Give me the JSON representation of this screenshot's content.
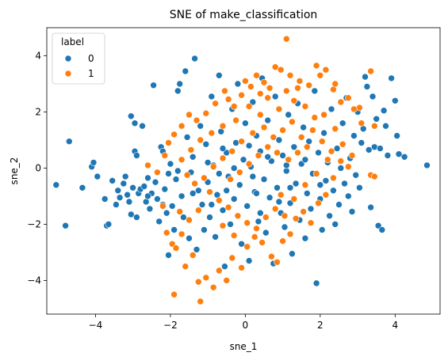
{
  "chart_data": {
    "type": "scatter",
    "title": "SNE of make_classification",
    "xlabel": "sne_1",
    "ylabel": "sne_2",
    "xlim": [
      -5.3,
      5.2
    ],
    "ylim": [
      -5.2,
      5.0
    ],
    "xticks": [
      -4,
      -2,
      0,
      2,
      4
    ],
    "yticks": [
      -4,
      -2,
      0,
      2,
      4
    ],
    "grid": false,
    "legend": {
      "title": "label",
      "placement": "top-left"
    },
    "series": [
      {
        "name": "0",
        "color": "#1f77b4",
        "points": [
          [
            -4.8,
            -2.05
          ],
          [
            -4.7,
            0.95
          ],
          [
            -5.05,
            -0.6
          ],
          [
            -4.35,
            -0.7
          ],
          [
            -4.1,
            0.05
          ],
          [
            -4.05,
            0.2
          ],
          [
            -3.95,
            -0.3
          ],
          [
            -3.75,
            -1.1
          ],
          [
            -3.7,
            -2.05
          ],
          [
            -3.65,
            -2.0
          ],
          [
            -3.55,
            -0.45
          ],
          [
            -3.45,
            -1.3
          ],
          [
            -3.4,
            -0.8
          ],
          [
            -3.35,
            -1.05
          ],
          [
            -3.25,
            -0.55
          ],
          [
            -3.2,
            -0.3
          ],
          [
            -3.15,
            -0.95
          ],
          [
            -3.1,
            -1.2
          ],
          [
            -3.05,
            1.85
          ],
          [
            -3.05,
            -1.65
          ],
          [
            -3.0,
            -0.7
          ],
          [
            -2.95,
            0.6
          ],
          [
            -2.95,
            1.6
          ],
          [
            -2.9,
            0.45
          ],
          [
            -2.9,
            -1.75
          ],
          [
            -2.85,
            -0.9
          ],
          [
            -2.8,
            -0.75
          ],
          [
            -2.75,
            1.5
          ],
          [
            -2.7,
            -0.65
          ],
          [
            -2.65,
            -1.2
          ],
          [
            -2.6,
            -0.35
          ],
          [
            -2.55,
            -1.45
          ],
          [
            -2.5,
            -0.9
          ],
          [
            -2.45,
            2.95
          ],
          [
            -2.4,
            -0.5
          ],
          [
            -2.35,
            -1.1
          ],
          [
            -2.3,
            -1.9
          ],
          [
            -2.25,
            0.75
          ],
          [
            -2.2,
            0.6
          ],
          [
            -2.15,
            -0.75
          ],
          [
            -2.1,
            -1.6
          ],
          [
            -2.05,
            -0.2
          ],
          [
            -2.05,
            -3.1
          ],
          [
            -2.0,
            0.15
          ],
          [
            -1.95,
            -1.35
          ],
          [
            -1.9,
            -2.2
          ],
          [
            -1.85,
            -0.4
          ],
          [
            -1.8,
            2.75
          ],
          [
            -1.75,
            3.0
          ],
          [
            -1.7,
            -1.0
          ],
          [
            -1.65,
            -1.75
          ],
          [
            -1.6,
            3.45
          ],
          [
            -1.55,
            1.1
          ],
          [
            -1.5,
            -2.5
          ],
          [
            -1.45,
            -0.15
          ],
          [
            -1.4,
            0.4
          ],
          [
            -1.35,
            3.9
          ],
          [
            -1.3,
            -2.9
          ],
          [
            -1.25,
            -0.8
          ],
          [
            -1.2,
            1.5
          ],
          [
            -1.15,
            -1.3
          ],
          [
            -1.1,
            -2.2
          ],
          [
            -1.05,
            0.85
          ],
          [
            -1.0,
            -0.5
          ],
          [
            -0.95,
            -1.75
          ],
          [
            -0.9,
            2.55
          ],
          [
            -0.85,
            0.1
          ],
          [
            -0.8,
            -2.45
          ],
          [
            -0.75,
            -0.95
          ],
          [
            -0.7,
            3.3
          ],
          [
            -0.65,
            1.3
          ],
          [
            -0.6,
            -1.5
          ],
          [
            -0.55,
            -3.5
          ],
          [
            -0.5,
            0.55
          ],
          [
            -0.45,
            -0.3
          ],
          [
            -0.4,
            -2.0
          ],
          [
            -0.35,
            2.1
          ],
          [
            -0.3,
            -1.1
          ],
          [
            -0.25,
            0.9
          ],
          [
            -0.2,
            3.0
          ],
          [
            -0.15,
            -0.6
          ],
          [
            -0.1,
            -2.7
          ],
          [
            -0.05,
            0.3
          ],
          [
            0.0,
            1.6
          ],
          [
            0.05,
            -1.35
          ],
          [
            0.1,
            -3.3
          ],
          [
            0.15,
            0.05
          ],
          [
            0.2,
            2.35
          ],
          [
            0.25,
            -0.85
          ],
          [
            0.3,
            1.15
          ],
          [
            0.35,
            -1.9
          ],
          [
            0.4,
            0.6
          ],
          [
            0.45,
            3.2
          ],
          [
            0.5,
            -0.4
          ],
          [
            0.55,
            -2.3
          ],
          [
            0.6,
            1.7
          ],
          [
            0.65,
            -1.05
          ],
          [
            0.7,
            0.25
          ],
          [
            0.75,
            -3.4
          ],
          [
            0.8,
            2.55
          ],
          [
            0.85,
            -0.7
          ],
          [
            0.9,
            1.0
          ],
          [
            0.95,
            -1.6
          ],
          [
            1.0,
            0.45
          ],
          [
            1.05,
            -2.1
          ],
          [
            1.1,
            -0.1
          ],
          [
            1.15,
            1.9
          ],
          [
            1.2,
            -1.25
          ],
          [
            1.25,
            -3.05
          ],
          [
            1.3,
            0.75
          ],
          [
            1.35,
            -0.55
          ],
          [
            1.4,
            2.3
          ],
          [
            1.45,
            -1.85
          ],
          [
            1.5,
            0.15
          ],
          [
            1.55,
            1.45
          ],
          [
            1.6,
            -2.5
          ],
          [
            1.65,
            -0.9
          ],
          [
            1.7,
            0.95
          ],
          [
            1.75,
            -1.45
          ],
          [
            1.8,
            -0.2
          ],
          [
            1.85,
            2.75
          ],
          [
            1.9,
            -4.1
          ],
          [
            1.95,
            0.55
          ],
          [
            2.0,
            -1.1
          ],
          [
            2.05,
            -2.2
          ],
          [
            2.1,
            1.25
          ],
          [
            2.15,
            -0.45
          ],
          [
            2.2,
            0.2
          ],
          [
            2.25,
            -1.7
          ],
          [
            2.3,
            2.1
          ],
          [
            2.35,
            -0.8
          ],
          [
            2.4,
            -2.0
          ],
          [
            2.45,
            0.7
          ],
          [
            2.5,
            -1.3
          ],
          [
            2.55,
            0.0
          ],
          [
            2.6,
            1.6
          ],
          [
            2.65,
            -0.55
          ],
          [
            2.7,
            2.5
          ],
          [
            2.75,
            -1.0
          ],
          [
            2.8,
            0.35
          ],
          [
            2.85,
            -1.55
          ],
          [
            2.9,
            1.15
          ],
          [
            2.95,
            -0.25
          ],
          [
            3.0,
            2.0
          ],
          [
            3.05,
            -0.7
          ],
          [
            3.1,
            0.9
          ],
          [
            3.15,
            1.4
          ],
          [
            3.2,
            3.25
          ],
          [
            3.25,
            2.9
          ],
          [
            3.3,
            0.65
          ],
          [
            3.35,
            -1.4
          ],
          [
            3.4,
            2.55
          ],
          [
            3.45,
            0.75
          ],
          [
            3.5,
            1.75
          ],
          [
            3.55,
            -2.05
          ],
          [
            3.6,
            0.7
          ],
          [
            3.65,
            -2.2
          ],
          [
            3.7,
            2.05
          ],
          [
            3.75,
            1.5
          ],
          [
            3.8,
            0.45
          ],
          [
            3.9,
            3.2
          ],
          [
            4.0,
            2.4
          ],
          [
            4.05,
            1.15
          ],
          [
            4.1,
            0.5
          ],
          [
            4.25,
            0.4
          ],
          [
            4.85,
            0.1
          ],
          [
            -1.0,
            0.2
          ],
          [
            -0.7,
            -0.2
          ],
          [
            -0.3,
            0.0
          ],
          [
            0.2,
            -0.3
          ],
          [
            0.6,
            0.4
          ],
          [
            0.1,
            0.8
          ],
          [
            -0.5,
            -0.8
          ],
          [
            1.2,
            -0.7
          ],
          [
            -1.8,
            -0.1
          ],
          [
            -2.2,
            -1.3
          ],
          [
            0.9,
            -1.2
          ],
          [
            1.6,
            0.3
          ],
          [
            -1.4,
            -0.9
          ],
          [
            -0.9,
            -1.3
          ],
          [
            0.4,
            -1.6
          ],
          [
            2.0,
            -0.6
          ],
          [
            -2.6,
            -1.0
          ],
          [
            0.3,
            -0.9
          ],
          [
            -0.6,
            0.7
          ],
          [
            1.1,
            0.1
          ]
        ]
      },
      {
        "name": "1",
        "color": "#ff7f0e",
        "points": [
          [
            1.1,
            4.6
          ],
          [
            0.8,
            3.6
          ],
          [
            0.95,
            3.5
          ],
          [
            1.2,
            3.3
          ],
          [
            1.45,
            3.1
          ],
          [
            1.7,
            2.95
          ],
          [
            1.9,
            3.65
          ],
          [
            2.0,
            3.3
          ],
          [
            2.15,
            3.5
          ],
          [
            2.35,
            2.8
          ],
          [
            2.55,
            2.35
          ],
          [
            2.75,
            2.5
          ],
          [
            3.05,
            2.15
          ],
          [
            3.35,
            3.45
          ],
          [
            3.45,
            1.5
          ],
          [
            0.5,
            3.05
          ],
          [
            0.3,
            3.3
          ],
          [
            0.15,
            2.9
          ],
          [
            -0.1,
            2.6
          ],
          [
            -0.3,
            2.2
          ],
          [
            -0.55,
            2.75
          ],
          [
            -0.8,
            2.3
          ],
          [
            -1.05,
            1.95
          ],
          [
            -1.3,
            1.7
          ],
          [
            -1.5,
            1.9
          ],
          [
            -1.7,
            1.5
          ],
          [
            -1.9,
            1.2
          ],
          [
            -2.05,
            0.9
          ],
          [
            -2.15,
            0.45
          ],
          [
            -2.2,
            -1.35
          ],
          [
            -2.1,
            -2.3
          ],
          [
            -1.95,
            -2.7
          ],
          [
            -1.85,
            -2.85
          ],
          [
            -1.7,
            -2.35
          ],
          [
            -1.6,
            -3.5
          ],
          [
            -1.4,
            -3.1
          ],
          [
            -1.25,
            -4.05
          ],
          [
            -1.2,
            -4.75
          ],
          [
            -1.05,
            -3.9
          ],
          [
            -0.85,
            -4.25
          ],
          [
            -0.7,
            -3.65
          ],
          [
            -0.5,
            -4.0
          ],
          [
            -0.35,
            -3.2
          ],
          [
            -0.1,
            -3.55
          ],
          [
            0.05,
            -2.8
          ],
          [
            0.25,
            -2.45
          ],
          [
            0.45,
            -2.65
          ],
          [
            0.7,
            -3.15
          ],
          [
            0.85,
            -3.35
          ],
          [
            1.0,
            -2.6
          ],
          [
            1.2,
            -2.35
          ],
          [
            1.35,
            -1.8
          ],
          [
            1.55,
            -1.55
          ],
          [
            1.75,
            -1.95
          ],
          [
            1.95,
            -1.25
          ],
          [
            2.15,
            -0.95
          ],
          [
            2.35,
            -0.35
          ],
          [
            2.55,
            0.25
          ],
          [
            2.75,
            0.05
          ],
          [
            3.35,
            -0.25
          ],
          [
            3.45,
            -0.3
          ],
          [
            -1.9,
            -4.5
          ],
          [
            0.6,
            2.5
          ],
          [
            0.9,
            2.1
          ],
          [
            1.3,
            2.4
          ],
          [
            1.6,
            2.2
          ],
          [
            1.85,
            1.8
          ],
          [
            2.1,
            1.9
          ],
          [
            2.4,
            1.4
          ],
          [
            0.4,
            1.9
          ],
          [
            0.1,
            2.2
          ],
          [
            -0.25,
            1.7
          ],
          [
            -0.6,
            1.5
          ],
          [
            -0.9,
            1.25
          ],
          [
            -1.2,
            1.0
          ],
          [
            -1.45,
            0.65
          ],
          [
            -1.7,
            0.3
          ],
          [
            -1.55,
            -0.25
          ],
          [
            -1.35,
            -0.55
          ],
          [
            -1.1,
            -0.35
          ],
          [
            -0.85,
            0.05
          ],
          [
            -0.6,
            0.35
          ],
          [
            -0.35,
            0.6
          ],
          [
            -0.1,
            0.95
          ],
          [
            0.2,
            1.25
          ],
          [
            0.5,
            1.45
          ],
          [
            0.75,
            1.1
          ],
          [
            1.0,
            1.35
          ],
          [
            1.25,
            1.65
          ],
          [
            1.5,
            1.1
          ],
          [
            1.8,
            1.35
          ],
          [
            2.05,
            0.95
          ],
          [
            2.3,
            0.6
          ],
          [
            2.6,
            0.85
          ],
          [
            2.85,
            0.45
          ],
          [
            -0.4,
            -0.4
          ],
          [
            -0.15,
            -0.15
          ],
          [
            0.1,
            0.15
          ],
          [
            0.35,
            0.45
          ],
          [
            0.6,
            0.75
          ],
          [
            0.85,
            0.55
          ],
          [
            1.15,
            0.3
          ],
          [
            1.4,
            0.55
          ],
          [
            1.65,
            0.75
          ],
          [
            -0.95,
            -0.85
          ],
          [
            -0.7,
            -1.15
          ],
          [
            -0.45,
            -1.4
          ],
          [
            -0.2,
            -1.7
          ],
          [
            0.05,
            -1.95
          ],
          [
            0.3,
            -2.15
          ],
          [
            0.55,
            -1.75
          ],
          [
            0.8,
            -1.45
          ],
          [
            1.05,
            -1.7
          ],
          [
            -1.25,
            -1.5
          ],
          [
            -1.5,
            -1.85
          ],
          [
            -1.75,
            -1.55
          ],
          [
            -0.3,
            -2.4
          ],
          [
            -0.6,
            -2.05
          ],
          [
            0.95,
            -0.95
          ],
          [
            1.3,
            -1.1
          ],
          [
            1.6,
            -0.6
          ],
          [
            1.9,
            -0.2
          ],
          [
            2.2,
            0.3
          ],
          [
            -2.35,
            -0.15
          ],
          [
            -2.6,
            0.1
          ],
          [
            0.65,
            2.85
          ],
          [
            0.4,
            2.65
          ],
          [
            1.1,
            2.75
          ],
          [
            1.4,
            2.85
          ],
          [
            -0.45,
            2.45
          ],
          [
            0.0,
            3.1
          ],
          [
            2.4,
            3.0
          ],
          [
            2.9,
            2.1
          ],
          [
            3.1,
            1.6
          ]
        ]
      }
    ]
  }
}
